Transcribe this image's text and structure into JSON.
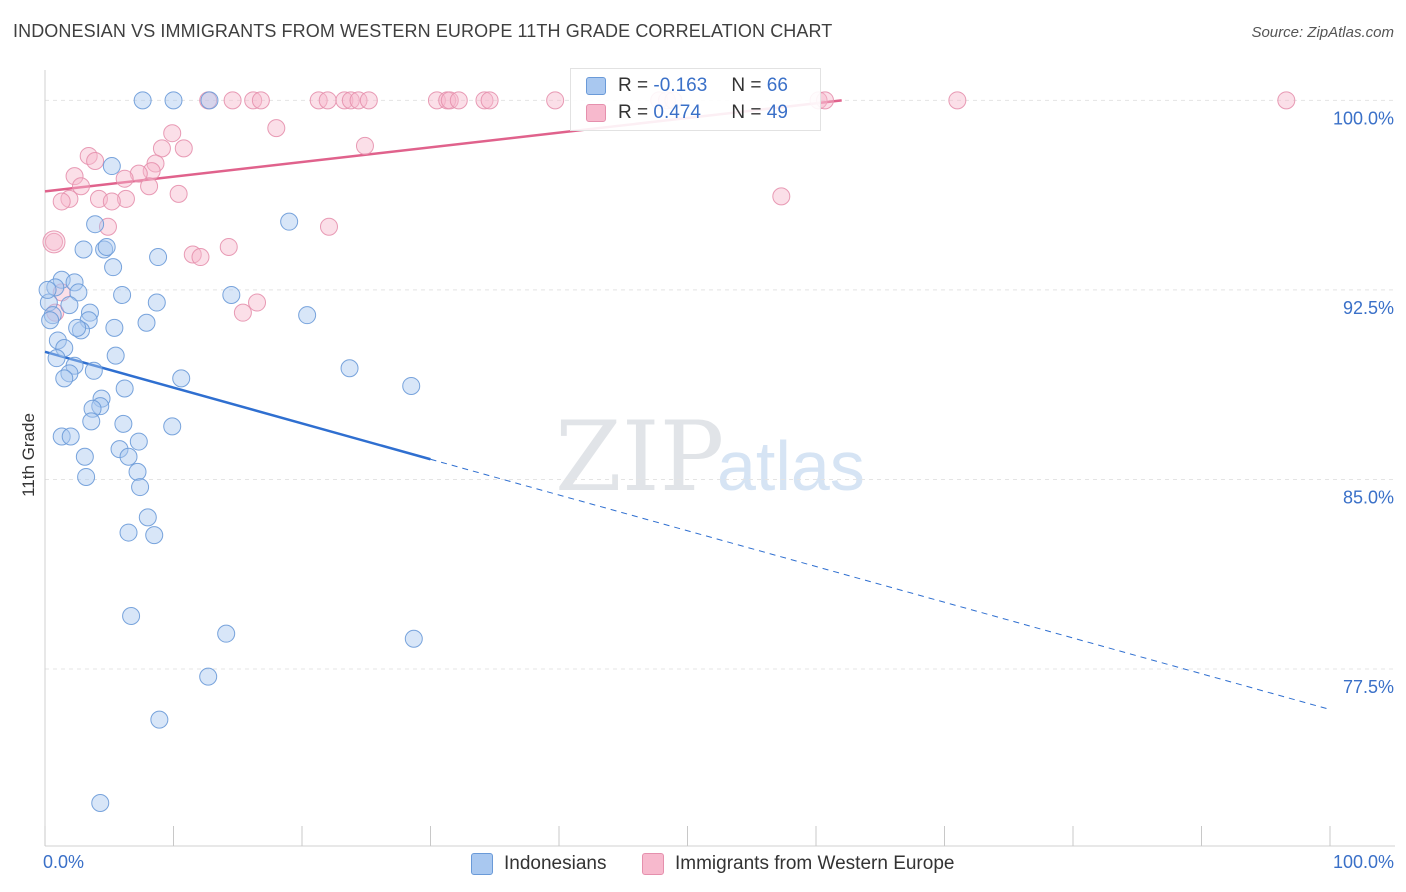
{
  "title": "INDONESIAN VS IMMIGRANTS FROM WESTERN EUROPE 11TH GRADE CORRELATION CHART",
  "source": "Source: ZipAtlas.com",
  "watermark": {
    "zip": "ZIP",
    "atlas": "atlas"
  },
  "legend_top": [
    {
      "r_label": "R =",
      "r_value": "-0.163",
      "n_label": "N =",
      "n_value": "66",
      "color": "#a9c8f0",
      "border": "#6a9ad8"
    },
    {
      "r_label": "R =",
      "r_value": "0.474",
      "n_label": "N =",
      "n_value": "49",
      "color": "#f7b9cd",
      "border": "#e590ad"
    }
  ],
  "chart_data": {
    "type": "scatter",
    "title": "INDONESIAN VS IMMIGRANTS FROM WESTERN EUROPE 11TH GRADE CORRELATION CHART",
    "xlabel": "",
    "ylabel": "11th Grade",
    "xlim": [
      0,
      100
    ],
    "ylim": [
      70.5,
      101.2
    ],
    "x_tick_labels": [
      "0.0%",
      "100.0%"
    ],
    "y_ticks": [
      77.5,
      85.0,
      92.5,
      100.0
    ],
    "y_tick_labels": [
      "77.5%",
      "85.0%",
      "92.5%",
      "100.0%"
    ],
    "grid": true,
    "legend_position": "bottom-center",
    "series": [
      {
        "name": "Indonesians",
        "color": "#6a9ad8",
        "fill": "#a9c8f0",
        "r": -0.163,
        "n": 66,
        "trend": {
          "x0": 0,
          "y0": 90.05,
          "x1": 30,
          "y1": 85.8,
          "dash_to_x": 100,
          "dash_to_y": 75.9
        },
        "points": [
          [
            7.6,
            100.0
          ],
          [
            10.0,
            100.0
          ],
          [
            12.8,
            100.0
          ],
          [
            5.2,
            97.4
          ],
          [
            3.9,
            95.1
          ],
          [
            19.0,
            95.2
          ],
          [
            3.0,
            94.1
          ],
          [
            4.6,
            94.1
          ],
          [
            4.8,
            94.2
          ],
          [
            8.8,
            93.8
          ],
          [
            5.3,
            93.4
          ],
          [
            1.3,
            92.9
          ],
          [
            2.3,
            92.8
          ],
          [
            0.8,
            92.6
          ],
          [
            2.6,
            92.4
          ],
          [
            6.0,
            92.3
          ],
          [
            14.5,
            92.3
          ],
          [
            0.3,
            92.0
          ],
          [
            1.9,
            91.9
          ],
          [
            3.5,
            91.6
          ],
          [
            0.6,
            91.5
          ],
          [
            20.4,
            91.5
          ],
          [
            0.4,
            91.3
          ],
          [
            7.9,
            91.2
          ],
          [
            3.4,
            91.3
          ],
          [
            5.4,
            91.0
          ],
          [
            2.8,
            90.9
          ],
          [
            1.0,
            90.5
          ],
          [
            1.5,
            90.2
          ],
          [
            0.9,
            89.8
          ],
          [
            5.5,
            89.9
          ],
          [
            2.3,
            89.5
          ],
          [
            3.8,
            89.3
          ],
          [
            1.9,
            89.2
          ],
          [
            23.7,
            89.4
          ],
          [
            1.5,
            89.0
          ],
          [
            10.6,
            89.0
          ],
          [
            28.5,
            88.7
          ],
          [
            6.2,
            88.6
          ],
          [
            4.4,
            88.2
          ],
          [
            4.3,
            87.9
          ],
          [
            3.7,
            87.8
          ],
          [
            3.6,
            87.3
          ],
          [
            6.1,
            87.2
          ],
          [
            9.9,
            87.1
          ],
          [
            1.3,
            86.7
          ],
          [
            2.0,
            86.7
          ],
          [
            7.3,
            86.5
          ],
          [
            5.8,
            86.2
          ],
          [
            3.1,
            85.9
          ],
          [
            6.5,
            85.9
          ],
          [
            7.2,
            85.3
          ],
          [
            3.2,
            85.1
          ],
          [
            7.4,
            84.7
          ],
          [
            8.0,
            83.5
          ],
          [
            6.5,
            82.9
          ],
          [
            8.5,
            82.8
          ],
          [
            6.7,
            79.6
          ],
          [
            14.1,
            78.9
          ],
          [
            28.7,
            78.7
          ],
          [
            12.7,
            77.2
          ],
          [
            8.9,
            75.5
          ],
          [
            4.3,
            72.2
          ],
          [
            0.2,
            92.5
          ],
          [
            2.5,
            91.0
          ],
          [
            8.7,
            92.0
          ]
        ]
      },
      {
        "name": "Immigrants from Western Europe",
        "color": "#e590ad",
        "fill": "#f7b9cd",
        "r": 0.474,
        "n": 49,
        "trend": {
          "x0": 0,
          "y0": 96.4,
          "x1": 62,
          "y1": 100.0
        },
        "points": [
          [
            12.7,
            100.0
          ],
          [
            14.6,
            100.0
          ],
          [
            16.2,
            100.0
          ],
          [
            16.8,
            100.0
          ],
          [
            21.3,
            100.0
          ],
          [
            22.0,
            100.0
          ],
          [
            23.3,
            100.0
          ],
          [
            23.8,
            100.0
          ],
          [
            24.4,
            100.0
          ],
          [
            25.2,
            100.0
          ],
          [
            30.5,
            100.0
          ],
          [
            31.3,
            100.0
          ],
          [
            31.5,
            100.0
          ],
          [
            32.2,
            100.0
          ],
          [
            34.2,
            100.0
          ],
          [
            34.6,
            100.0
          ],
          [
            39.7,
            100.0
          ],
          [
            47.8,
            100.0
          ],
          [
            48.4,
            100.0
          ],
          [
            48.9,
            100.0
          ],
          [
            60.2,
            100.0
          ],
          [
            60.7,
            100.0
          ],
          [
            71.0,
            100.0
          ],
          [
            96.6,
            100.0
          ],
          [
            9.9,
            98.7
          ],
          [
            18.0,
            98.9
          ],
          [
            10.8,
            98.1
          ],
          [
            9.1,
            98.1
          ],
          [
            24.9,
            98.2
          ],
          [
            3.4,
            97.8
          ],
          [
            3.9,
            97.6
          ],
          [
            8.6,
            97.5
          ],
          [
            8.3,
            97.2
          ],
          [
            7.3,
            97.1
          ],
          [
            2.3,
            97.0
          ],
          [
            6.2,
            96.9
          ],
          [
            2.8,
            96.6
          ],
          [
            8.1,
            96.6
          ],
          [
            6.3,
            96.1
          ],
          [
            10.4,
            96.3
          ],
          [
            1.9,
            96.1
          ],
          [
            4.2,
            96.1
          ],
          [
            5.2,
            96.0
          ],
          [
            1.3,
            96.0
          ],
          [
            57.3,
            96.2
          ],
          [
            4.9,
            95.0
          ],
          [
            22.1,
            95.0
          ],
          [
            0.7,
            94.4
          ],
          [
            14.3,
            94.2
          ]
        ],
        "extra_points": [
          [
            11.5,
            93.9
          ],
          [
            12.1,
            93.8
          ],
          [
            1.3,
            92.4
          ],
          [
            16.5,
            92.0
          ],
          [
            15.4,
            91.6
          ],
          [
            0.8,
            91.6
          ]
        ]
      }
    ]
  },
  "bottom_legend": [
    {
      "label": "Indonesians",
      "color": "#a9c8f0",
      "border": "#6a9ad8"
    },
    {
      "label": "Immigrants from Western Europe",
      "color": "#f7b9cd",
      "border": "#e590ad"
    }
  ]
}
